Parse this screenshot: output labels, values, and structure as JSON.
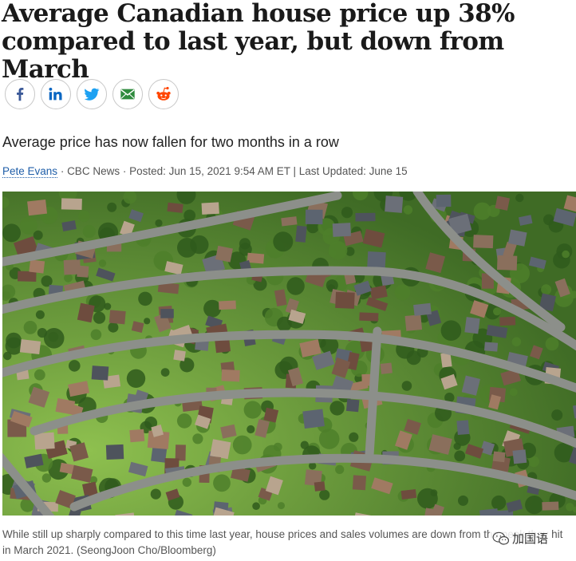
{
  "article": {
    "headline": "Average Canadian house price up 38% compared to last year, but down from March",
    "subtitle": "Average price has now fallen for two months in a row",
    "byline": {
      "author": "Pete Evans",
      "source": "CBC News",
      "posted": "Posted: Jun 15, 2021 9:54 AM ET",
      "separator": "|",
      "updated": "Last Updated: June 15"
    },
    "photo_caption": "While still up sharply compared to this time last year, house prices and sales volumes are down from the peak they hit in March 2021. (SeongJoon Cho/Bloomberg)"
  },
  "share": {
    "buttons": [
      {
        "icon": "facebook-icon",
        "color": "#3b5998"
      },
      {
        "icon": "linkedin-icon",
        "color": "#0a66c2"
      },
      {
        "icon": "twitter-icon",
        "color": "#1da1f2"
      },
      {
        "icon": "email-icon",
        "color": "#2e8b3d"
      },
      {
        "icon": "reddit-icon",
        "color": "#ff4500"
      }
    ]
  },
  "watermark": {
    "text": "加国语"
  }
}
